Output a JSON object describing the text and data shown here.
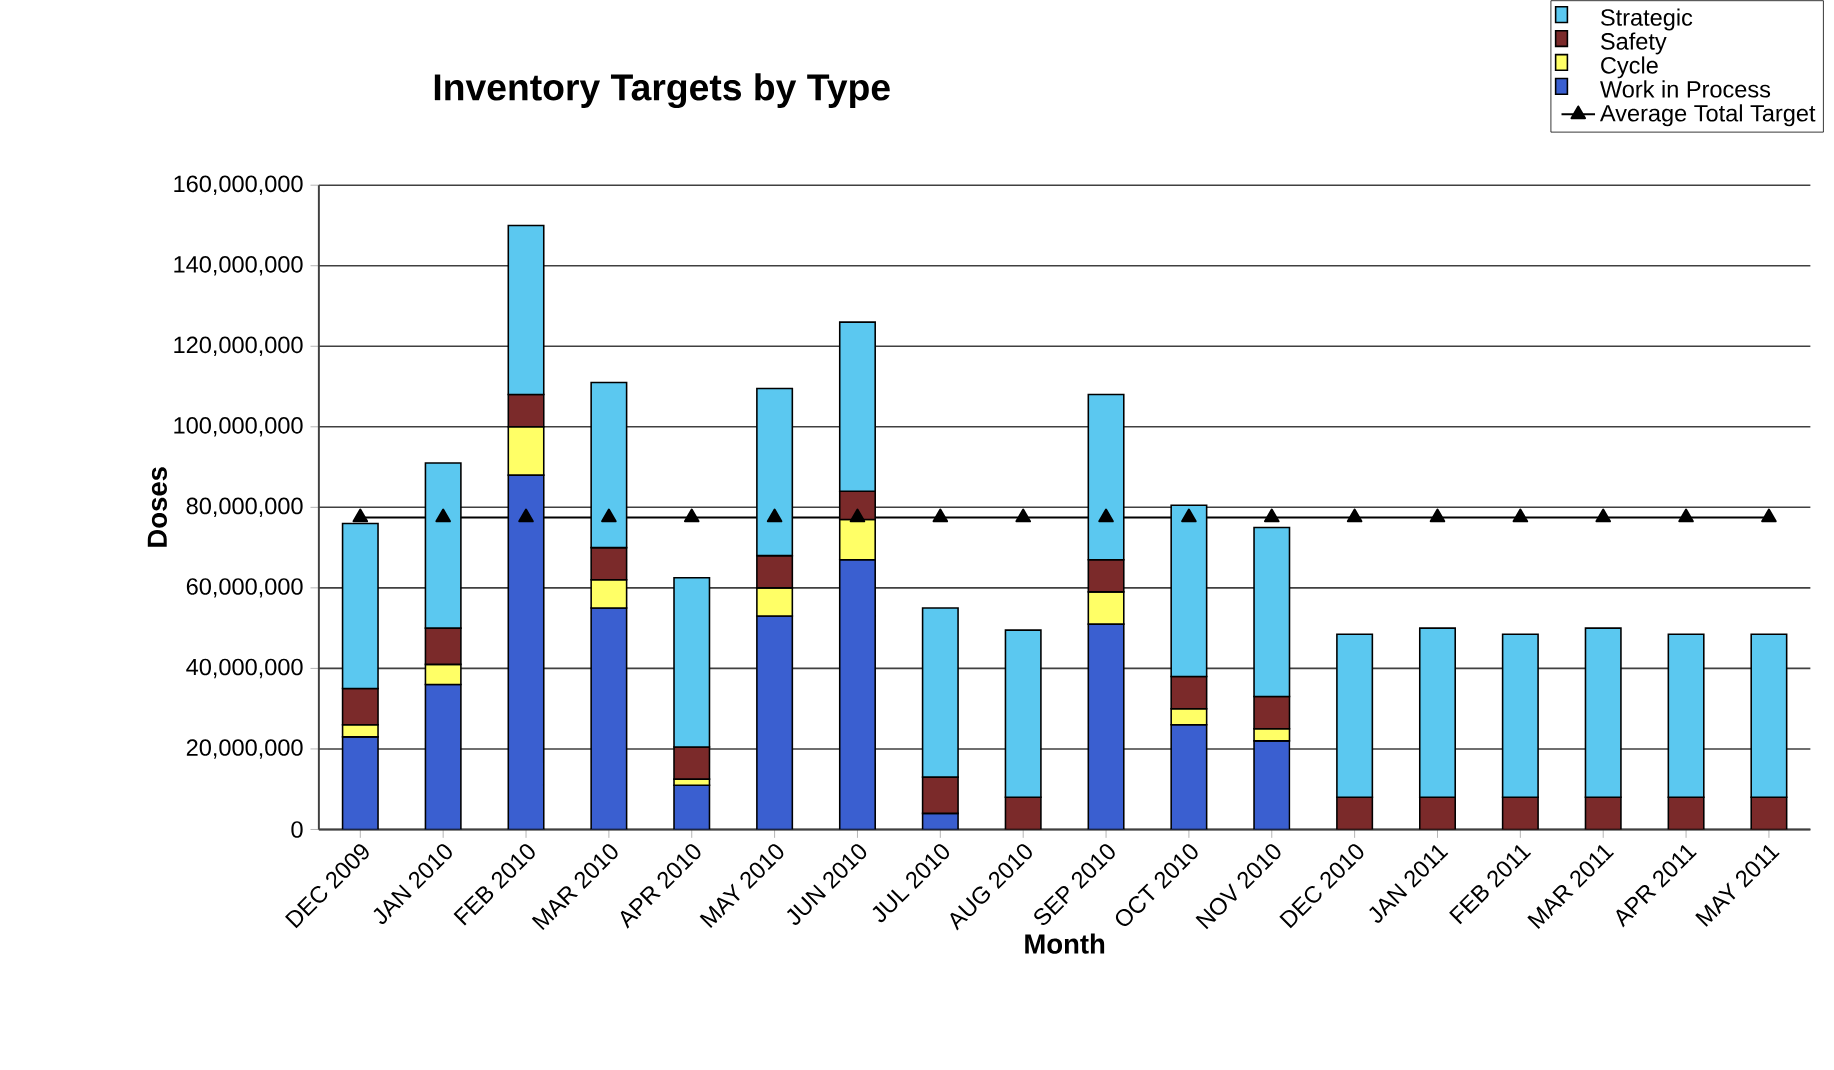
{
  "chart_data": {
    "type": "bar",
    "title": "Inventory Targets by Type",
    "xlabel": "Month",
    "ylabel": "Doses",
    "categories": [
      "DEC 2009",
      "JAN 2010",
      "FEB 2010",
      "MAR 2010",
      "APR 2010",
      "MAY 2010",
      "JUN 2010",
      "JUL 2010",
      "AUG 2010",
      "SEP 2010",
      "OCT 2010",
      "NOV 2010",
      "DEC 2010",
      "JAN 2011",
      "FEB 2011",
      "MAR 2011",
      "APR 2011",
      "MAY 2011"
    ],
    "stacked": true,
    "series": [
      {
        "name": "Work in Process",
        "color": "#3a5fd0",
        "values": [
          23000000,
          36000000,
          88000000,
          55000000,
          11000000,
          53000000,
          67000000,
          4000000,
          0,
          51000000,
          26000000,
          22000000,
          0,
          0,
          0,
          0,
          0,
          0
        ]
      },
      {
        "name": "Cycle",
        "color": "#ffff66",
        "values": [
          3000000,
          5000000,
          12000000,
          7000000,
          1500000,
          7000000,
          10000000,
          0,
          0,
          8000000,
          4000000,
          3000000,
          0,
          0,
          0,
          0,
          0,
          0
        ]
      },
      {
        "name": "Safety",
        "color": "#7b2a2a",
        "values": [
          9000000,
          9000000,
          8000000,
          8000000,
          8000000,
          8000000,
          7000000,
          9000000,
          8000000,
          8000000,
          8000000,
          8000000,
          8000000,
          8000000,
          8000000,
          8000000,
          8000000,
          8000000
        ]
      },
      {
        "name": "Strategic",
        "color": "#5bc8f0",
        "values": [
          41000000,
          41000000,
          42000000,
          41000000,
          42000000,
          41500000,
          42000000,
          42000000,
          41500000,
          41000000,
          42500000,
          42000000,
          40500000,
          42000000,
          40500000,
          42000000,
          40500000,
          40500000
        ]
      },
      {
        "name": "Average Total Target",
        "type": "line",
        "color": "#000000",
        "marker": "triangle",
        "line_style": "solid",
        "values": [
          77500000,
          77500000,
          77500000,
          77500000,
          77500000,
          77500000,
          77500000,
          77500000,
          77500000,
          77500000,
          77500000,
          77500000,
          77500000,
          77500000,
          77500000,
          77500000,
          77500000,
          77500000
        ]
      }
    ],
    "ylim": [
      0,
      160000000
    ],
    "yticks": [
      {
        "value": 0,
        "label": "0"
      },
      {
        "value": 20000000,
        "label": "20,000,000"
      },
      {
        "value": 40000000,
        "label": "40,000,000"
      },
      {
        "value": 60000000,
        "label": "60,000,000"
      },
      {
        "value": 80000000,
        "label": "80,000,000"
      },
      {
        "value": 100000000,
        "label": "100,000,000"
      },
      {
        "value": 120000000,
        "label": "120,000,000"
      },
      {
        "value": 140000000,
        "label": "140,000,000"
      },
      {
        "value": 160000000,
        "label": "160,000,000"
      }
    ],
    "grid": "y",
    "legend": "top right"
  }
}
